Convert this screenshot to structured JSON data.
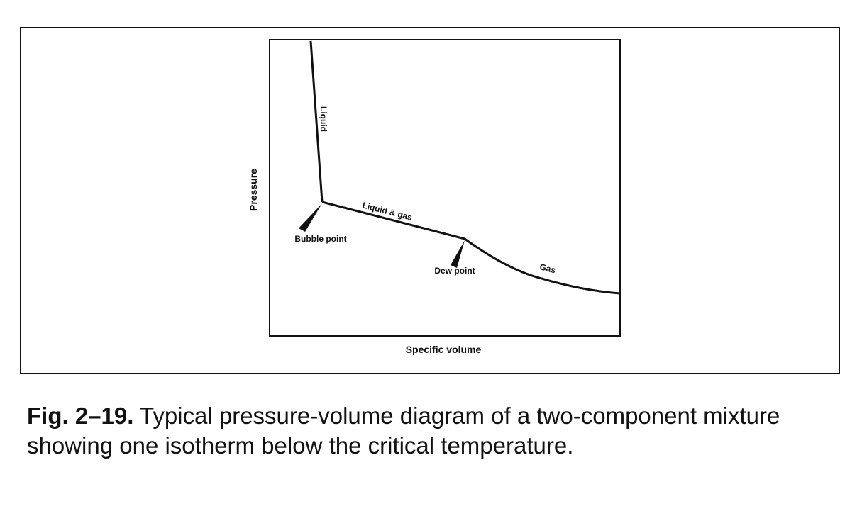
{
  "diagram": {
    "x_axis_label": "Specific volume",
    "y_axis_label": "Pressure",
    "regions": {
      "liquid": "Liquid",
      "two_phase": "Liquid & gas",
      "gas": "Gas"
    },
    "points": {
      "bubble": "Bubble point",
      "dew": "Dew point"
    }
  },
  "caption": {
    "figure_number": "Fig. 2–19.",
    "text": " Typical pressure-volume diagram of a two-component mixture showing one isotherm below the critical temperature."
  }
}
